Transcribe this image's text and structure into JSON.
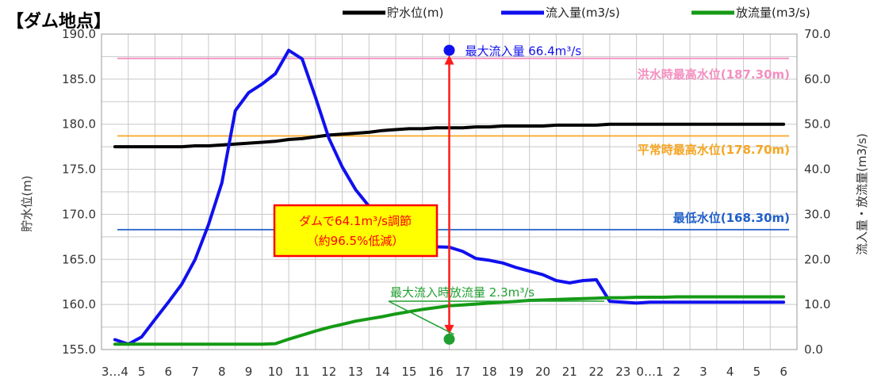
{
  "chart_data": {
    "type": "line",
    "title": "【ダム地点】",
    "x_labels": [
      "3…4",
      "5",
      "6",
      "7",
      "8",
      "9",
      "10",
      "11",
      "12",
      "13",
      "14",
      "15",
      "16",
      "17",
      "18",
      "19",
      "20",
      "21",
      "22",
      "23",
      "0…1",
      "2",
      "3",
      "4",
      "5",
      "6"
    ],
    "y_left": {
      "label": "貯水位(m)",
      "ylim": [
        155.0,
        190.0
      ],
      "ticks": [
        155.0,
        160.0,
        165.0,
        170.0,
        175.0,
        180.0,
        185.0,
        190.0
      ]
    },
    "y_right": {
      "label": "流入量・放流量(m3/s)",
      "ylim": [
        0.0,
        70.0
      ],
      "ticks": [
        0.0,
        10.0,
        20.0,
        30.0,
        40.0,
        50.0,
        60.0,
        70.0
      ]
    },
    "grid": true,
    "legend_position": "top",
    "series": [
      {
        "name": "貯水位(m)",
        "axis": "left",
        "color": "#000000",
        "x": [
          0,
          0.5,
          1,
          1.5,
          2,
          2.5,
          3,
          3.5,
          4,
          4.5,
          5,
          5.5,
          6,
          6.5,
          7,
          7.5,
          8,
          8.5,
          9,
          9.5,
          10,
          10.5,
          11,
          11.5,
          12,
          12.5,
          13,
          13.5,
          14,
          14.5,
          15,
          15.5,
          16,
          16.5,
          17,
          17.5,
          18,
          18.5,
          19,
          19.5,
          20,
          20.5,
          21,
          21.5,
          22,
          22.5,
          23,
          23.5,
          24,
          24.5,
          25
        ],
        "values": [
          177.5,
          177.5,
          177.5,
          177.5,
          177.5,
          177.5,
          177.6,
          177.6,
          177.7,
          177.8,
          177.9,
          178.0,
          178.1,
          178.3,
          178.4,
          178.6,
          178.8,
          178.9,
          179.0,
          179.1,
          179.3,
          179.4,
          179.5,
          179.5,
          179.6,
          179.6,
          179.6,
          179.7,
          179.7,
          179.8,
          179.8,
          179.8,
          179.8,
          179.9,
          179.9,
          179.9,
          179.9,
          180.0,
          180.0,
          180.0,
          180.0,
          180.0,
          180.0,
          180.0,
          180.0,
          180.0,
          180.0,
          180.0,
          180.0,
          180.0,
          180.0
        ]
      },
      {
        "name": "流入量(m3/s)",
        "axis": "right",
        "color": "#1010ee",
        "x": [
          0,
          0.5,
          1,
          1.5,
          2,
          2.5,
          3,
          3.5,
          4,
          4.5,
          5,
          5.5,
          6,
          6.5,
          7,
          7.5,
          8,
          8.5,
          9,
          9.5,
          10,
          10.5,
          11,
          11.5,
          12,
          12.5,
          13,
          13.5,
          14,
          14.5,
          15,
          15.5,
          16,
          16.5,
          17,
          17.5,
          18,
          18.5,
          19,
          19.5,
          20,
          20.5,
          21,
          21.5,
          22,
          22.5,
          23,
          23.5,
          24,
          24.5,
          25
        ],
        "values": [
          2.2,
          1.2,
          2.8,
          6.7,
          10.5,
          14.5,
          20,
          27.7,
          37,
          53,
          57,
          58.9,
          61.2,
          66.4,
          64.5,
          56,
          46.9,
          40.5,
          35.5,
          31.8,
          28.5,
          26.7,
          25,
          24.2,
          22.8,
          22.7,
          21.8,
          20.2,
          19.8,
          19.2,
          18.2,
          17.4,
          16.6,
          15.3,
          14.8,
          15.3,
          15.5,
          10.7,
          10.5,
          10.3,
          10.5,
          10.5,
          10.5,
          10.5,
          10.5,
          10.5,
          10.5,
          10.5,
          10.5,
          10.5,
          10.5
        ]
      },
      {
        "name": "放流量(m3/s)",
        "axis": "right",
        "color": "#159a15",
        "x": [
          0,
          0.5,
          1,
          1.5,
          2,
          2.5,
          3,
          3.5,
          4,
          4.5,
          5,
          5.5,
          6,
          6.5,
          7,
          7.5,
          8,
          8.5,
          9,
          9.5,
          10,
          10.5,
          11,
          11.5,
          12,
          12.5,
          13,
          13.5,
          14,
          14.5,
          15,
          15.5,
          16,
          16.5,
          17,
          17.5,
          18,
          18.5,
          19,
          19.5,
          20,
          20.5,
          21,
          21.5,
          22,
          22.5,
          23,
          23.5,
          24,
          24.5,
          25
        ],
        "values": [
          1.2,
          1.2,
          1.2,
          1.2,
          1.2,
          1.2,
          1.2,
          1.2,
          1.2,
          1.2,
          1.2,
          1.2,
          1.3,
          2.3,
          3.2,
          4.1,
          4.9,
          5.6,
          6.3,
          6.8,
          7.3,
          7.9,
          8.4,
          8.9,
          9.3,
          9.7,
          9.9,
          10.1,
          10.3,
          10.5,
          10.7,
          10.9,
          11.0,
          11.1,
          11.2,
          11.3,
          11.4,
          11.5,
          11.5,
          11.6,
          11.6,
          11.6,
          11.7,
          11.7,
          11.7,
          11.7,
          11.7,
          11.7,
          11.7,
          11.7,
          11.7
        ]
      }
    ],
    "reference_lines": [
      {
        "label": "洪水時最高水位(187.30m)",
        "value": 187.3,
        "color": "#f48fc0"
      },
      {
        "label": "平常時最高水位(178.70m)",
        "value": 178.7,
        "color": "#f5a623"
      },
      {
        "label": "最低水位(168.30m)",
        "value": 168.3,
        "color": "#1f5fc9"
      }
    ],
    "annotations": {
      "peak_inflow": {
        "label": "最大流入量 66.4m³/s",
        "x": 12.5,
        "value": 66.4
      },
      "outflow_at_peak": {
        "label": "最大流入時放流量 2.3m³/s",
        "x": 12.5,
        "value": 2.3
      },
      "regulation_box": {
        "line1": "ダムで64.1m³/s調節",
        "line2": "（約96.5%低減）"
      }
    }
  }
}
